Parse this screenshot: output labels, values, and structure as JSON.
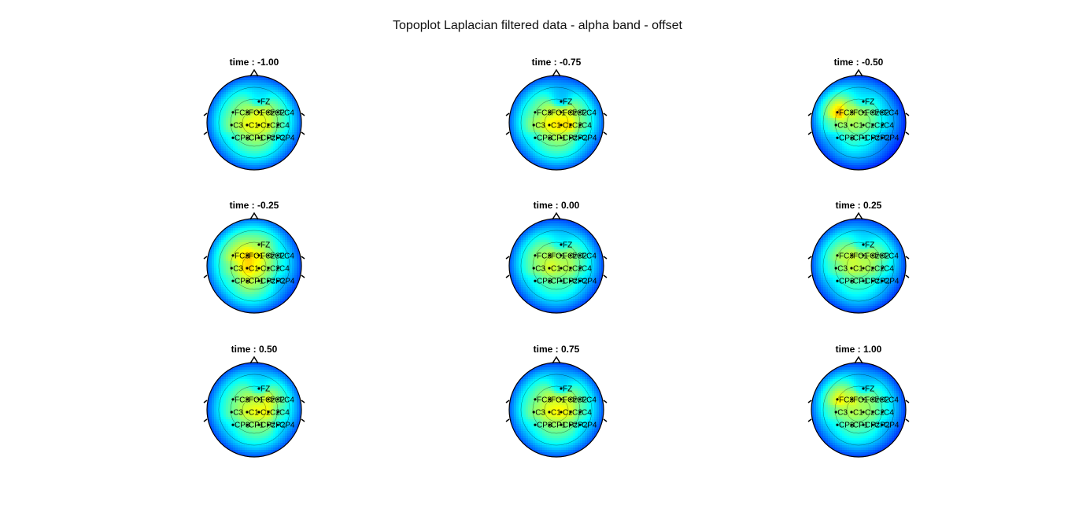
{
  "title": "Topoplot Laplacian filtered data - alpha band - offset",
  "chart_data": {
    "type": "heatmap",
    "title": "Topoplot Laplacian filtered data - alpha band - offset",
    "colormap": "jet",
    "electrodes": [
      {
        "label": "FZ",
        "x": 0.1,
        "y": -0.45
      },
      {
        "label": "FC3",
        "x": -0.45,
        "y": -0.22
      },
      {
        "label": "FC1",
        "x": -0.15,
        "y": -0.22
      },
      {
        "label": "FCz",
        "x": 0.1,
        "y": -0.22
      },
      {
        "label": "FC2",
        "x": 0.3,
        "y": -0.22
      },
      {
        "label": "FC4",
        "x": 0.5,
        "y": -0.22
      },
      {
        "label": "C3",
        "x": -0.48,
        "y": 0.05
      },
      {
        "label": "C1",
        "x": -0.15,
        "y": 0.05
      },
      {
        "label": "Cz",
        "x": 0.1,
        "y": 0.05
      },
      {
        "label": "C2",
        "x": 0.3,
        "y": 0.05
      },
      {
        "label": "C4",
        "x": 0.5,
        "y": 0.05
      },
      {
        "label": "CP3",
        "x": -0.45,
        "y": 0.32
      },
      {
        "label": "CP1",
        "x": -0.15,
        "y": 0.32
      },
      {
        "label": "CPz",
        "x": 0.1,
        "y": 0.32
      },
      {
        "label": "CP2",
        "x": 0.3,
        "y": 0.32
      },
      {
        "label": "CP4",
        "x": 0.5,
        "y": 0.32
      }
    ],
    "panels": [
      {
        "title": "time : -1.00",
        "time": -1.0,
        "values": [
          0.45,
          0.58,
          0.58,
          0.62,
          0.62,
          0.6,
          0.6,
          0.62,
          0.62,
          0.64,
          0.58,
          0.52,
          0.56,
          0.58,
          0.56,
          0.5
        ]
      },
      {
        "title": "time : -0.75",
        "time": -0.75,
        "values": [
          0.4,
          0.58,
          0.6,
          0.62,
          0.64,
          0.6,
          0.62,
          0.64,
          0.66,
          0.7,
          0.6,
          0.52,
          0.56,
          0.58,
          0.56,
          0.5
        ]
      },
      {
        "title": "time : -0.50",
        "time": -0.5,
        "values": [
          0.45,
          0.8,
          0.6,
          0.55,
          0.52,
          0.45,
          0.58,
          0.55,
          0.52,
          0.5,
          0.45,
          0.45,
          0.48,
          0.45,
          0.42,
          0.38
        ]
      },
      {
        "title": "time : -0.25",
        "time": -0.25,
        "values": [
          0.62,
          0.68,
          0.7,
          0.65,
          0.58,
          0.52,
          0.6,
          0.68,
          0.62,
          0.56,
          0.5,
          0.56,
          0.62,
          0.58,
          0.52,
          0.45
        ]
      },
      {
        "title": "time : 0.00",
        "time": 0.0,
        "values": [
          0.45,
          0.6,
          0.58,
          0.55,
          0.58,
          0.56,
          0.58,
          0.6,
          0.56,
          0.58,
          0.54,
          0.5,
          0.52,
          0.5,
          0.52,
          0.48
        ]
      },
      {
        "title": "time : 0.25",
        "time": 0.25,
        "values": [
          0.45,
          0.62,
          0.6,
          0.56,
          0.6,
          0.58,
          0.56,
          0.58,
          0.56,
          0.56,
          0.52,
          0.48,
          0.5,
          0.48,
          0.48,
          0.45
        ]
      },
      {
        "title": "time : 0.50",
        "time": 0.5,
        "values": [
          0.45,
          0.56,
          0.58,
          0.58,
          0.66,
          0.62,
          0.56,
          0.6,
          0.62,
          0.66,
          0.56,
          0.5,
          0.54,
          0.56,
          0.58,
          0.5
        ]
      },
      {
        "title": "time : 0.75",
        "time": 0.75,
        "values": [
          0.42,
          0.58,
          0.6,
          0.6,
          0.62,
          0.58,
          0.6,
          0.62,
          0.64,
          0.64,
          0.56,
          0.52,
          0.56,
          0.56,
          0.56,
          0.5
        ]
      },
      {
        "title": "time : 1.00",
        "time": 1.0,
        "values": [
          0.42,
          0.72,
          0.62,
          0.55,
          0.55,
          0.52,
          0.58,
          0.56,
          0.54,
          0.54,
          0.5,
          0.5,
          0.52,
          0.5,
          0.5,
          0.45
        ]
      }
    ]
  }
}
